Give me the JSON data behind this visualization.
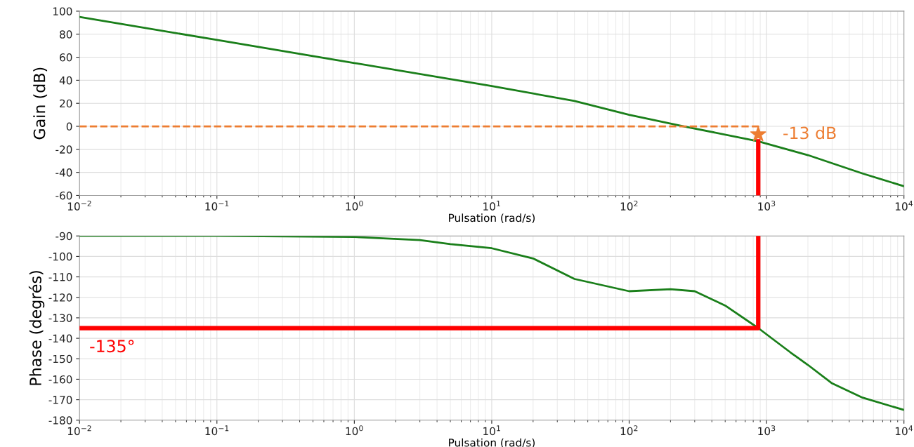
{
  "chart_data": [
    {
      "type": "line",
      "xlabel": "Pulsation (rad/s)",
      "ylabel": "Gain (dB)",
      "log": "x",
      "grid": true,
      "xlim": [
        0.01,
        10000
      ],
      "ylim": [
        -60,
        100
      ],
      "xticks": [
        {
          "value": 0.01,
          "label": "10$^{−2}$"
        },
        {
          "value": 0.1,
          "label": "10$^{−1}$"
        },
        {
          "value": 1,
          "label": "10$^{0}$"
        },
        {
          "value": 10,
          "label": "10$^{1}$"
        },
        {
          "value": 100,
          "label": "10$^{2}$"
        },
        {
          "value": 1000,
          "label": "10$^{3}$"
        },
        {
          "value": 10000,
          "label": "10$^{4}$"
        }
      ],
      "yticks": [
        -60,
        -40,
        -20,
        0,
        20,
        40,
        60,
        80,
        100
      ],
      "series": [
        {
          "color": "#1a7f1a",
          "x": [
            0.01,
            0.1,
            1,
            10,
            40,
            100,
            250,
            870,
            2000,
            5000,
            10000
          ],
          "values": [
            95,
            75,
            55,
            35,
            22,
            10,
            0,
            -13,
            -25,
            -41,
            -52
          ]
        },
        {
          "color": "#ed7d31",
          "line_style": "dashed",
          "x": [
            0.01,
            870,
            870
          ],
          "values": [
            0,
            0,
            -7
          ]
        },
        {
          "color": "#ff0000",
          "x": [
            870,
            870
          ],
          "values": [
            -13,
            -60
          ]
        },
        {
          "type": "scatter",
          "marker": "star",
          "color": "#ed7d31",
          "x": [
            870
          ],
          "values": [
            -7
          ]
        }
      ],
      "annotations": [
        {
          "text": "-13 dB",
          "x": 870,
          "y": -7
        }
      ]
    },
    {
      "type": "line",
      "xlabel": "Pulsation (rad/s)",
      "ylabel": "Phase (degrés)",
      "log": "x",
      "grid": true,
      "xlim": [
        0.01,
        10000
      ],
      "ylim": [
        -180,
        -90
      ],
      "xticks": [
        {
          "value": 0.01,
          "label": "10$^{−2}$"
        },
        {
          "value": 0.1,
          "label": "10$^{−1}$"
        },
        {
          "value": 1,
          "label": "10$^{0}$"
        },
        {
          "value": 10,
          "label": "10$^{1}$"
        },
        {
          "value": 100,
          "label": "10$^{2}$"
        },
        {
          "value": 1000,
          "label": "10$^{3}$"
        },
        {
          "value": 10000,
          "label": "10$^{4}$"
        }
      ],
      "yticks": [
        -180,
        -170,
        -160,
        -150,
        -140,
        -130,
        -120,
        -110,
        -100,
        -90
      ],
      "series": [
        {
          "color": "#1a7f1a",
          "x": [
            0.01,
            0.1,
            1,
            3,
            5,
            10,
            20,
            40,
            100,
            200,
            300,
            500,
            870,
            1500,
            2000,
            3000,
            5000,
            10000
          ],
          "values": [
            -90,
            -90,
            -90.5,
            -92,
            -94,
            -96,
            -101,
            -111,
            -117,
            -116,
            -117,
            -124,
            -135,
            -147,
            -153,
            -162,
            -169,
            -175
          ]
        },
        {
          "color": "#ff0000",
          "x": [
            0.01,
            870,
            870
          ],
          "values": [
            -135,
            -135,
            -90
          ]
        }
      ],
      "annotations": [
        {
          "text": "-135°",
          "x": 0.01,
          "y": -135
        }
      ]
    }
  ]
}
